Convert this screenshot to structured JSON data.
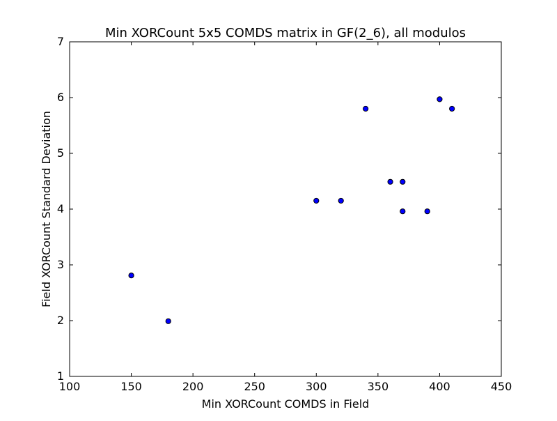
{
  "chart_data": {
    "type": "scatter",
    "title": "Min XORCount 5x5 COMDS matrix in GF(2_6), all modulos",
    "xlabel": "Min XORCount COMDS in Field",
    "ylabel": "Field XORCount Standard Deviation",
    "xlim": [
      100,
      450
    ],
    "ylim": [
      1,
      7
    ],
    "xticks": [
      "100",
      "150",
      "200",
      "250",
      "300",
      "350",
      "400",
      "450"
    ],
    "yticks": [
      "1",
      "2",
      "3",
      "4",
      "5",
      "6",
      "7"
    ],
    "grid": false,
    "legend": "none",
    "marker_color": "#0000ff",
    "marker_edge_color": "#000000",
    "series": [
      {
        "x": [
          150,
          180,
          300,
          320,
          340,
          360,
          370,
          370,
          390,
          400,
          410
        ],
        "y": [
          2.81,
          1.99,
          4.15,
          4.15,
          5.8,
          4.49,
          4.49,
          3.96,
          3.96,
          5.97,
          5.8
        ]
      }
    ]
  }
}
